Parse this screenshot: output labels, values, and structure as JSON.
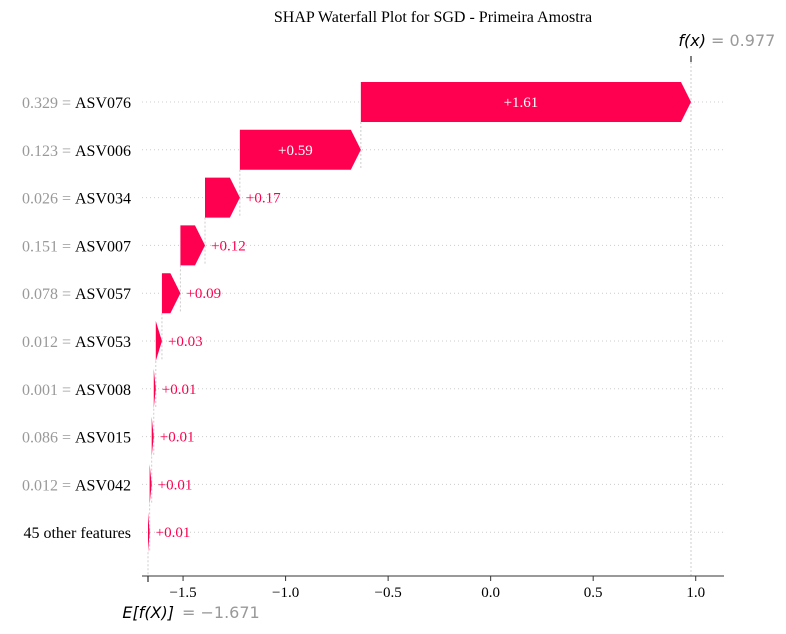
{
  "chart_data": {
    "type": "waterfall",
    "title": "SHAP Waterfall Plot for SGD - Primeira Amostra",
    "fx_label": "f(x)",
    "fx_value_text": "= 0.977",
    "fx_value": 0.977,
    "base_label": "E[f(X)]",
    "base_value_text": "= −1.671",
    "base_value": -1.671,
    "xlim": [
      -1.7,
      1.13
    ],
    "xticks": [
      {
        "value": -1.5,
        "label": "−1.5"
      },
      {
        "value": -1.0,
        "label": "−1.0"
      },
      {
        "value": -0.5,
        "label": "−0.5"
      },
      {
        "value": 0.0,
        "label": "0.0"
      },
      {
        "value": 0.5,
        "label": "0.5"
      },
      {
        "value": 1.0,
        "label": "1.0"
      }
    ],
    "features": [
      {
        "feature_value": "0.329 =",
        "name": "ASV076",
        "shap": 1.61,
        "label": "+1.61"
      },
      {
        "feature_value": "0.123 =",
        "name": "ASV006",
        "shap": 0.59,
        "label": "+0.59"
      },
      {
        "feature_value": "0.026 =",
        "name": "ASV034",
        "shap": 0.17,
        "label": "+0.17"
      },
      {
        "feature_value": "0.151 =",
        "name": "ASV007",
        "shap": 0.12,
        "label": "+0.12"
      },
      {
        "feature_value": "0.078 =",
        "name": "ASV057",
        "shap": 0.09,
        "label": "+0.09"
      },
      {
        "feature_value": "0.012 =",
        "name": "ASV053",
        "shap": 0.03,
        "label": "+0.03"
      },
      {
        "feature_value": "0.001 =",
        "name": "ASV008",
        "shap": 0.01,
        "label": "+0.01"
      },
      {
        "feature_value": "0.086 =",
        "name": "ASV015",
        "shap": 0.01,
        "label": "+0.01"
      },
      {
        "feature_value": "0.012 =",
        "name": "ASV042",
        "shap": 0.01,
        "label": "+0.01"
      },
      {
        "feature_value": "",
        "name": "45 other features",
        "shap": 0.01,
        "label": "+0.01"
      }
    ],
    "colors": {
      "positive": "#ff0051",
      "feature_value": "#999999",
      "feature_name": "#000000",
      "grid": "#cccccc",
      "axis": "#333333"
    }
  }
}
